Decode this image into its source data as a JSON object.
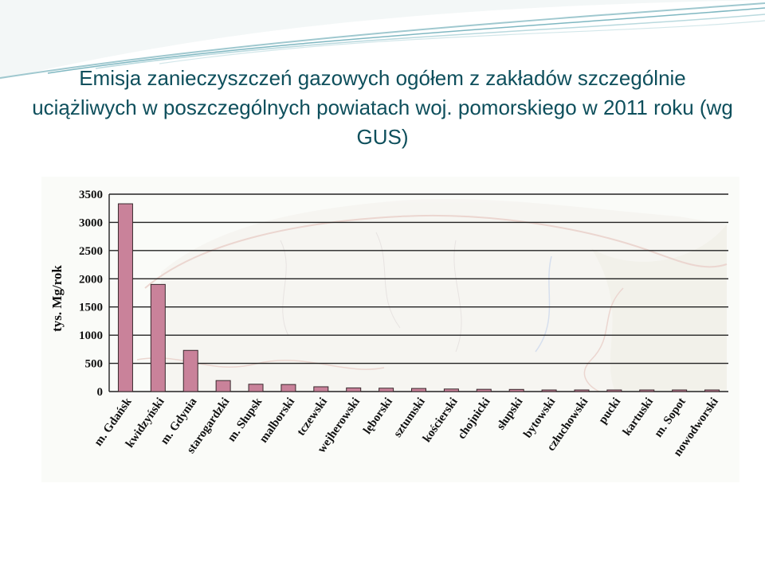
{
  "slide": {
    "title": "Emisja zanieczyszczeń gazowych ogółem z zakładów szczególnie uciążliwych w poszczególnych powiatach woj. pomorskiego w 2011 roku (wg GUS)"
  },
  "colors": {
    "title": "#0e4f5c",
    "bar_fill": "#c9829a",
    "bar_stroke": "#3a2a2e",
    "gridline": "#222222",
    "map_outline": "#e0b8b0"
  },
  "chart_data": {
    "type": "bar",
    "title": "",
    "xlabel": "",
    "ylabel": "tys. Mg/rok",
    "ylim": [
      0,
      3500
    ],
    "yticks": [
      0,
      500,
      1000,
      1500,
      2000,
      2500,
      3000,
      3500
    ],
    "grid": true,
    "categories": [
      "m. Gdańsk",
      "kwidzyński",
      "m. Gdynia",
      "starogardzki",
      "m. Słupsk",
      "malborski",
      "tczewski",
      "wejherowski",
      "lęborski",
      "sztumski",
      "kościerski",
      "chojnicki",
      "słupski",
      "bytowski",
      "człuchowski",
      "pucki",
      "kartuski",
      "m. Sopot",
      "nowodworski"
    ],
    "values": [
      3330,
      1900,
      730,
      195,
      130,
      125,
      85,
      65,
      60,
      55,
      45,
      40,
      38,
      20,
      20,
      18,
      15,
      12,
      10
    ]
  }
}
